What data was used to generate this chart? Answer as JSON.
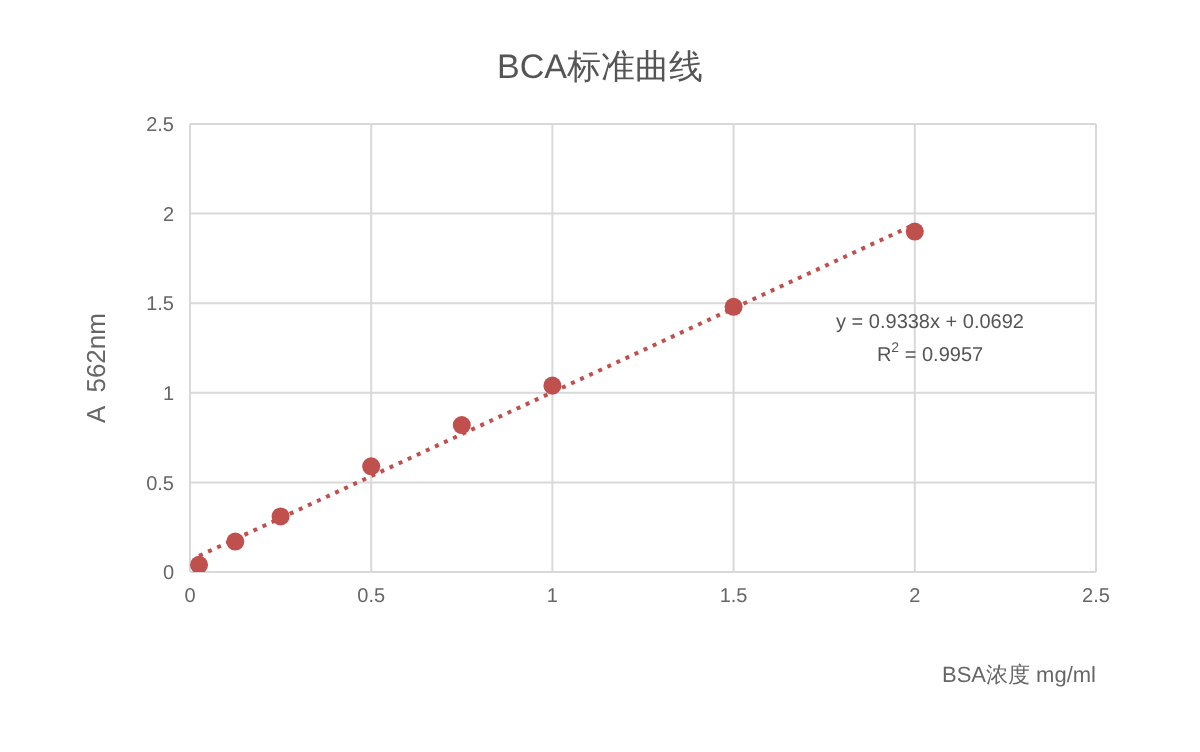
{
  "chart_data": {
    "type": "scatter",
    "title": "BCA标准曲线",
    "xlabel": "BSA浓度 mg/ml",
    "ylabel": "A  562nm",
    "x": [
      0.025,
      0.125,
      0.25,
      0.5,
      0.75,
      1,
      1.5,
      2
    ],
    "series": [
      {
        "color": "#c0504d",
        "values": [
          0.04,
          0.17,
          0.31,
          0.59,
          0.82,
          1.04,
          1.48,
          1.9
        ],
        "marker": "circle"
      },
      {
        "type": "line",
        "color": "#c0504d",
        "x": [
          0.025,
          2
        ],
        "values": [
          0.09,
          1.94
        ],
        "line_style": "dotted",
        "marker": "none"
      }
    ],
    "xlim": [
      0,
      2.5
    ],
    "xticks": [
      0,
      0.5,
      1,
      1.5,
      2,
      2.5
    ],
    "ylim": [
      0,
      2.5
    ],
    "yticks": [
      0,
      0.5,
      1,
      1.5,
      2,
      2.5
    ],
    "grid": true,
    "annotations": [
      "y = 0.9338x + 0.0692",
      "R$^{2}$ = 0.9957"
    ]
  }
}
